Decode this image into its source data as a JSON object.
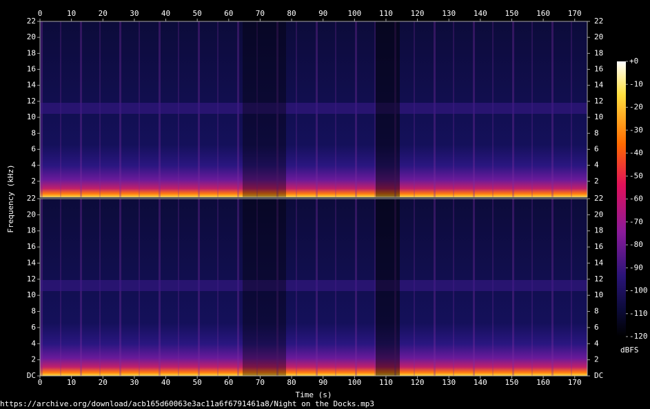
{
  "chart_data": [
    {
      "type": "heatmap",
      "ylabel": "Frequency (kHz)",
      "xlim": [
        0,
        174
      ],
      "xticks": [
        0,
        10,
        20,
        30,
        40,
        50,
        60,
        70,
        80,
        90,
        100,
        110,
        120,
        130,
        140,
        150,
        160,
        170
      ],
      "ylim": [
        0,
        22
      ],
      "yticks": [
        2,
        4,
        6,
        8,
        10,
        12,
        14,
        16,
        18,
        20,
        22
      ]
    },
    {
      "type": "heatmap",
      "xlabel": "Time (s)",
      "xlim": [
        0,
        174
      ],
      "xticks": [
        0,
        10,
        20,
        30,
        40,
        50,
        60,
        70,
        80,
        90,
        100,
        110,
        120,
        130,
        140,
        150,
        160,
        170
      ],
      "ylim": [
        0,
        22
      ],
      "yticks": [
        {
          "value": 0,
          "label": "DC"
        },
        2,
        4,
        6,
        8,
        10,
        12,
        14,
        16,
        18,
        20,
        22
      ]
    }
  ],
  "colorbar": {
    "label": "dBFS",
    "lim": [
      -120,
      0
    ],
    "ticks": [
      {
        "value": 0,
        "label": "+0"
      },
      -10,
      -20,
      -30,
      -40,
      -50,
      -60,
      -70,
      -80,
      -90,
      -100,
      -110,
      -120
    ]
  },
  "footer": "https://archive.org/download/acb165d60063e3ac11a6f6791461a8/Night on the Docks.mp3"
}
